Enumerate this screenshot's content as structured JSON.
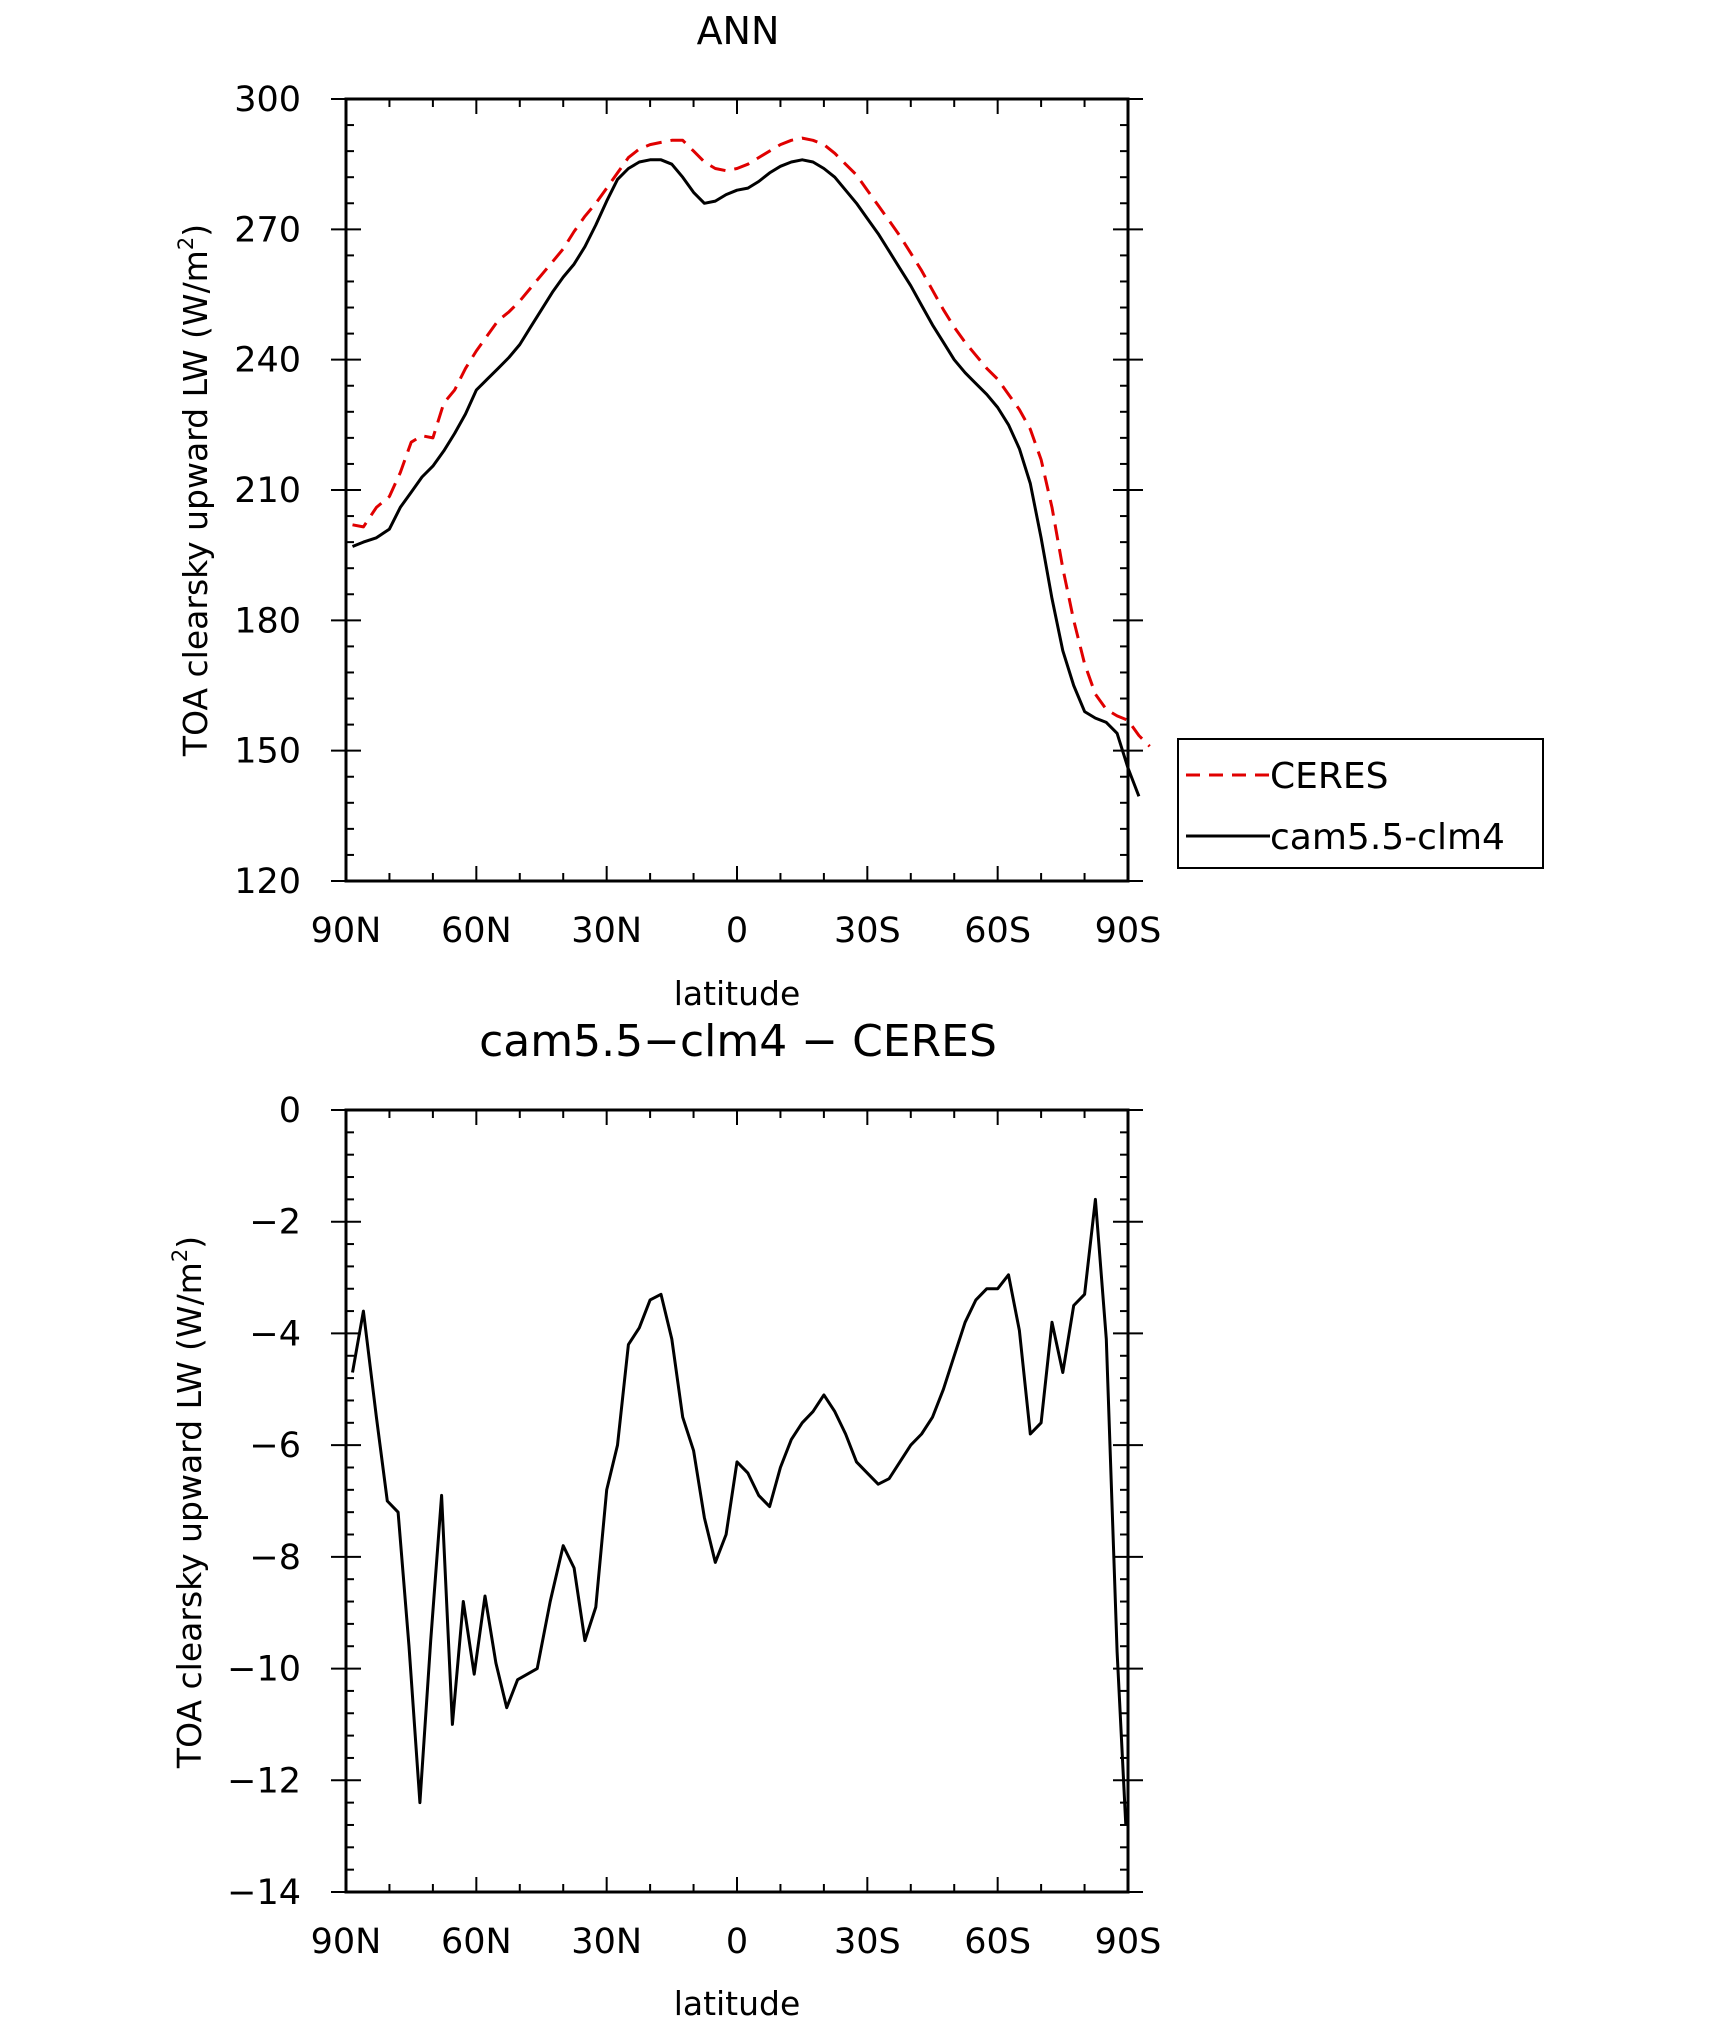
{
  "chart_data": [
    {
      "type": "line",
      "title": "ANN",
      "xlabel": "latitude",
      "ylabel": "TOA clearsky upward LW (W/m²)",
      "ylabel_main": "TOA clearsky upward LW (W/m",
      "ylabel_sup": "2",
      "ylabel_end": ")",
      "xlim": [
        90,
        -90
      ],
      "ylim": [
        120,
        300
      ],
      "x_ticks": [
        {
          "value": 90,
          "label": "90N"
        },
        {
          "value": 60,
          "label": "60N"
        },
        {
          "value": 30,
          "label": "30N"
        },
        {
          "value": 0,
          "label": "0"
        },
        {
          "value": -30,
          "label": "30S"
        },
        {
          "value": -60,
          "label": "60S"
        },
        {
          "value": -90,
          "label": "90S"
        }
      ],
      "y_ticks": [
        120,
        150,
        180,
        210,
        240,
        270,
        300
      ],
      "legend_position": "right",
      "series": [
        {
          "name": "CERES",
          "color": "#e00000",
          "dash": true,
          "points": [
            [
              88.5,
              202
            ],
            [
              86,
              201.5
            ],
            [
              83,
              206
            ],
            [
              80,
              208.5
            ],
            [
              77.5,
              214
            ],
            [
              75,
              221
            ],
            [
              72.5,
              222.5
            ],
            [
              70,
              222
            ],
            [
              67.5,
              230
            ],
            [
              65,
              233
            ],
            [
              62.5,
              238
            ],
            [
              60,
              242
            ],
            [
              57.5,
              245.5
            ],
            [
              55,
              249
            ],
            [
              52.5,
              251
            ],
            [
              50,
              253.5
            ],
            [
              47.5,
              256.5
            ],
            [
              45,
              259.5
            ],
            [
              42.5,
              262.5
            ],
            [
              40,
              265.5
            ],
            [
              37.5,
              269.5
            ],
            [
              35,
              273
            ],
            [
              32.5,
              276
            ],
            [
              30,
              279.5
            ],
            [
              27.5,
              283
            ],
            [
              25,
              286.5
            ],
            [
              22.5,
              288.5
            ],
            [
              20,
              289.5
            ],
            [
              17.5,
              290
            ],
            [
              15,
              290.5
            ],
            [
              12.5,
              290.5
            ],
            [
              10,
              288
            ],
            [
              7.5,
              285.5
            ],
            [
              5,
              284
            ],
            [
              2.5,
              283.5
            ],
            [
              0,
              284
            ],
            [
              -2.5,
              285
            ],
            [
              -5,
              286.5
            ],
            [
              -7.5,
              288
            ],
            [
              -10,
              289.5
            ],
            [
              -12.5,
              290.5
            ],
            [
              -15,
              291
            ],
            [
              -17.5,
              290.5
            ],
            [
              -20,
              289.5
            ],
            [
              -22.5,
              287.5
            ],
            [
              -25,
              285
            ],
            [
              -27.5,
              282.5
            ],
            [
              -30,
              279
            ],
            [
              -32.5,
              275.5
            ],
            [
              -35,
              272
            ],
            [
              -37.5,
              268.5
            ],
            [
              -40,
              264.5
            ],
            [
              -42.5,
              260.5
            ],
            [
              -45,
              256
            ],
            [
              -47.5,
              251.5
            ],
            [
              -50,
              247.5
            ],
            [
              -52.5,
              244
            ],
            [
              -55,
              241
            ],
            [
              -57.5,
              238
            ],
            [
              -60,
              235.5
            ],
            [
              -62.5,
              232
            ],
            [
              -65,
              228.5
            ],
            [
              -67.5,
              224
            ],
            [
              -70,
              217
            ],
            [
              -72.5,
              206
            ],
            [
              -75,
              192
            ],
            [
              -77.5,
              180
            ],
            [
              -80,
              170
            ],
            [
              -82.5,
              163
            ],
            [
              -85,
              159.5
            ],
            [
              -87.5,
              158
            ],
            [
              -90,
              157
            ],
            [
              -92.5,
              153.5
            ],
            [
              -95,
              151
            ]
          ]
        },
        {
          "name": "cam5.5-clm4",
          "color": "#000000",
          "dash": false,
          "points": [
            [
              88.5,
              197
            ],
            [
              86,
              198
            ],
            [
              83,
              199
            ],
            [
              80,
              201
            ],
            [
              77.5,
              206
            ],
            [
              75,
              209.5
            ],
            [
              72.5,
              213
            ],
            [
              70,
              215.5
            ],
            [
              67.5,
              219
            ],
            [
              65,
              223
            ],
            [
              62.5,
              227.5
            ],
            [
              60,
              233
            ],
            [
              57.5,
              235.5
            ],
            [
              55,
              238
            ],
            [
              52.5,
              240.5
            ],
            [
              50,
              243.5
            ],
            [
              47.5,
              247.5
            ],
            [
              45,
              251.5
            ],
            [
              42.5,
              255.5
            ],
            [
              40,
              259
            ],
            [
              37.5,
              262
            ],
            [
              35,
              266
            ],
            [
              32.5,
              271
            ],
            [
              30,
              276.5
            ],
            [
              27.5,
              281.5
            ],
            [
              25,
              284
            ],
            [
              22.5,
              285.5
            ],
            [
              20,
              286
            ],
            [
              17.5,
              286
            ],
            [
              15,
              285
            ],
            [
              12.5,
              282
            ],
            [
              10,
              278.5
            ],
            [
              7.5,
              276
            ],
            [
              5,
              276.5
            ],
            [
              2.5,
              278
            ],
            [
              0,
              279
            ],
            [
              -2.5,
              279.5
            ],
            [
              -5,
              281
            ],
            [
              -7.5,
              283
            ],
            [
              -10,
              284.5
            ],
            [
              -12.5,
              285.5
            ],
            [
              -15,
              286
            ],
            [
              -17.5,
              285.5
            ],
            [
              -20,
              284
            ],
            [
              -22.5,
              282
            ],
            [
              -25,
              279
            ],
            [
              -27.5,
              276
            ],
            [
              -30,
              272.5
            ],
            [
              -32.5,
              269
            ],
            [
              -35,
              265
            ],
            [
              -37.5,
              261
            ],
            [
              -40,
              257
            ],
            [
              -42.5,
              252.5
            ],
            [
              -45,
              248
            ],
            [
              -47.5,
              244
            ],
            [
              -50,
              240
            ],
            [
              -52.5,
              237
            ],
            [
              -55,
              234.5
            ],
            [
              -57.5,
              232
            ],
            [
              -60,
              229
            ],
            [
              -62.5,
              225
            ],
            [
              -65,
              219.5
            ],
            [
              -67.5,
              211.5
            ],
            [
              -70,
              199
            ],
            [
              -72.5,
              185
            ],
            [
              -75,
              173
            ],
            [
              -77.5,
              165
            ],
            [
              -80,
              159
            ],
            [
              -82.5,
              157.5
            ],
            [
              -85,
              156.5
            ],
            [
              -87.5,
              154
            ],
            [
              -90,
              146
            ],
            [
              -92.5,
              139.5
            ]
          ]
        }
      ]
    },
    {
      "type": "line",
      "title": "cam5.5-clm4 – CERES",
      "title_left": "cam5.5",
      "title_mid": "clm4",
      "title_right": "CERES",
      "xlabel": "latitude",
      "ylabel": "TOA clearsky upward LW (W/m²)",
      "ylabel_main": "TOA clearsky upward LW (W/m",
      "ylabel_sup": "2",
      "ylabel_end": ")",
      "xlim": [
        90,
        -90
      ],
      "ylim": [
        -14,
        0
      ],
      "x_ticks": [
        {
          "value": 90,
          "label": "90N"
        },
        {
          "value": 60,
          "label": "60N"
        },
        {
          "value": 30,
          "label": "30N"
        },
        {
          "value": 0,
          "label": "0"
        },
        {
          "value": -30,
          "label": "30S"
        },
        {
          "value": -60,
          "label": "60S"
        },
        {
          "value": -90,
          "label": "90S"
        }
      ],
      "y_ticks": [
        0,
        -2,
        -4,
        -6,
        -8,
        -10,
        -12,
        -14
      ],
      "series": [
        {
          "color": "#000000",
          "dash": false,
          "points": [
            [
              88.5,
              -4.7
            ],
            [
              86,
              -3.6
            ],
            [
              83,
              -5.5
            ],
            [
              80.5,
              -7.0
            ],
            [
              78,
              -7.2
            ],
            [
              75.5,
              -9.6
            ],
            [
              73,
              -12.4
            ],
            [
              70.5,
              -9.5
            ],
            [
              68,
              -6.9
            ],
            [
              65.5,
              -11.0
            ],
            [
              63,
              -8.8
            ],
            [
              60.5,
              -10.1
            ],
            [
              58,
              -8.7
            ],
            [
              55.5,
              -9.9
            ],
            [
              53,
              -10.7
            ],
            [
              50.5,
              -10.2
            ],
            [
              46,
              -10.0
            ],
            [
              43,
              -8.8
            ],
            [
              40,
              -7.8
            ],
            [
              37.5,
              -8.2
            ],
            [
              35,
              -9.5
            ],
            [
              32.5,
              -8.9
            ],
            [
              30,
              -6.8
            ],
            [
              27.5,
              -6.0
            ],
            [
              25,
              -4.2
            ],
            [
              22.5,
              -3.9
            ],
            [
              20,
              -3.4
            ],
            [
              17.5,
              -3.3
            ],
            [
              15,
              -4.1
            ],
            [
              12.5,
              -5.5
            ],
            [
              10,
              -6.1
            ],
            [
              7.5,
              -7.3
            ],
            [
              5,
              -8.1
            ],
            [
              2.5,
              -7.6
            ],
            [
              0,
              -6.3
            ],
            [
              -2.5,
              -6.5
            ],
            [
              -5,
              -6.9
            ],
            [
              -7.5,
              -7.1
            ],
            [
              -10,
              -6.4
            ],
            [
              -12.5,
              -5.9
            ],
            [
              -15,
              -5.6
            ],
            [
              -17.5,
              -5.4
            ],
            [
              -20,
              -5.1
            ],
            [
              -22.5,
              -5.4
            ],
            [
              -25,
              -5.8
            ],
            [
              -27.5,
              -6.3
            ],
            [
              -30,
              -6.5
            ],
            [
              -32.5,
              -6.7
            ],
            [
              -35,
              -6.6
            ],
            [
              -37.5,
              -6.3
            ],
            [
              -40,
              -6.0
            ],
            [
              -42.5,
              -5.8
            ],
            [
              -45,
              -5.5
            ],
            [
              -47.5,
              -5.0
            ],
            [
              -50,
              -4.4
            ],
            [
              -52.5,
              -3.8
            ],
            [
              -55,
              -3.4
            ],
            [
              -57.5,
              -3.2
            ],
            [
              -60,
              -3.2
            ],
            [
              -62.5,
              -2.95
            ],
            [
              -65,
              -3.95
            ],
            [
              -67.5,
              -5.8
            ],
            [
              -70,
              -5.6
            ],
            [
              -72.5,
              -3.8
            ],
            [
              -75,
              -4.7
            ],
            [
              -77.5,
              -3.5
            ],
            [
              -80,
              -3.3
            ],
            [
              -82.5,
              -1.6
            ],
            [
              -85,
              -4.1
            ],
            [
              -87.5,
              -9.7
            ],
            [
              -89.5,
              -12.8
            ]
          ]
        }
      ]
    }
  ]
}
